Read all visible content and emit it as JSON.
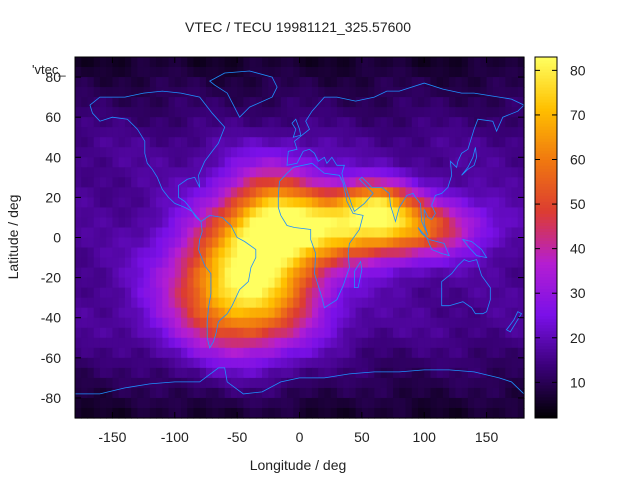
{
  "chart_data": {
    "type": "heatmap",
    "title": "VTEC / TECU 19981121_325.57600",
    "xlabel": "Longitude / deg",
    "ylabel": "Latitude / deg",
    "xlim": [
      -180,
      180
    ],
    "ylim": [
      -90,
      90
    ],
    "xticks": [
      -150,
      -100,
      -50,
      0,
      50,
      100,
      150
    ],
    "yticks": [
      -80,
      -60,
      -40,
      -20,
      0,
      20,
      40,
      60,
      80
    ],
    "grid": false,
    "colorbar": {
      "range": [
        2,
        83
      ],
      "ticks": [
        10,
        20,
        30,
        40,
        50,
        60,
        70,
        80
      ],
      "colormap": [
        "#000000",
        "#3a0078",
        "#7a10e8",
        "#b41ed2",
        "#dc3c32",
        "#f07810",
        "#ffc000",
        "#ffff60"
      ]
    },
    "legend": {
      "label": "'vtec_",
      "position": "top-left"
    },
    "coastline_color": "#1e90ff",
    "hotspots": [
      {
        "lon": -45,
        "lat": -25,
        "value": 80,
        "sigma_lon": 40,
        "sigma_lat": 22
      },
      {
        "lon": -20,
        "lat": 10,
        "value": 60,
        "sigma_lon": 30,
        "sigma_lat": 18
      },
      {
        "lon": 40,
        "lat": 5,
        "value": 55,
        "sigma_lon": 45,
        "sigma_lat": 12
      },
      {
        "lon": 90,
        "lat": 5,
        "value": 45,
        "sigma_lon": 40,
        "sigma_lat": 10
      },
      {
        "lon": 60,
        "lat": 18,
        "value": 48,
        "sigma_lon": 20,
        "sigma_lat": 8
      }
    ],
    "background_value": 16,
    "polar_value": 6
  }
}
